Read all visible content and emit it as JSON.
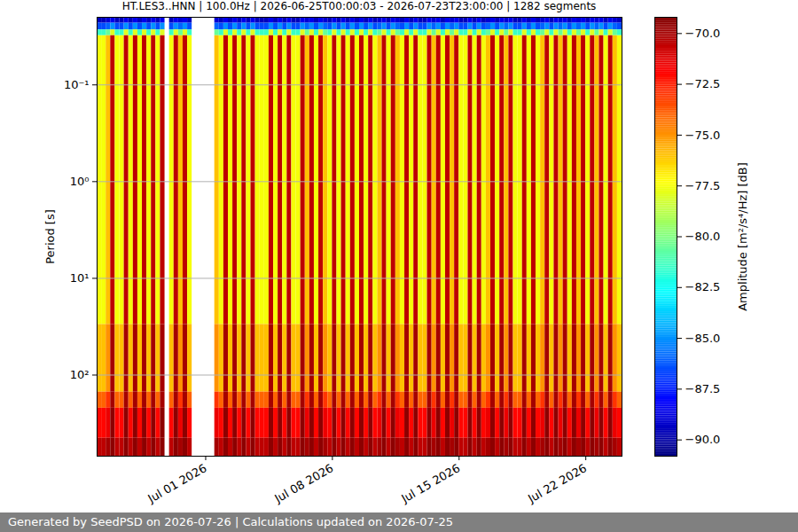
{
  "chart_data": {
    "type": "heatmap",
    "title": "HT.LES3..HNN | 100.0Hz | 2026-06-25T00:00:03 - 2026-07-23T23:00:00 | 1282 segments",
    "ylabel": "Period [s]",
    "caption": "Generated by SeedPSD on 2026-07-26 | Calculations updated on 2026-07-25",
    "log": "y",
    "grid": true,
    "xlim": [
      "2026-06-25T00:00",
      "2026-07-24T00:00"
    ],
    "xticks": [
      {
        "value": "2026-07-01T00:00",
        "label": "Jul 01 2026"
      },
      {
        "value": "2026-07-08T00:00",
        "label": "Jul 08 2026"
      },
      {
        "value": "2026-07-15T00:00",
        "label": "Jul 15 2026"
      },
      {
        "value": "2026-07-22T00:00",
        "label": "Jul 22 2026"
      }
    ],
    "ylim": [
      0.02,
      690
    ],
    "yticks": [
      {
        "value": 0.1,
        "label": "10⁻¹"
      },
      {
        "value": 1,
        "label": "10⁰"
      },
      {
        "value": 10,
        "label": "10¹"
      },
      {
        "value": 100,
        "label": "10²"
      }
    ],
    "y_bins": [
      0.02,
      0.023,
      0.027,
      0.031,
      30,
      150,
      220,
      450,
      690
    ],
    "colorbar": {
      "label": "Amplitude [m²/s⁴/Hz] [dB]",
      "range": [
        -90.8,
        -69.2
      ],
      "ticks": [
        {
          "value": -70,
          "label": "−70.0"
        },
        {
          "value": -72.5,
          "label": "−72.5"
        },
        {
          "value": -75,
          "label": "−75.0"
        },
        {
          "value": -77.5,
          "label": "−77.5"
        },
        {
          "value": -80,
          "label": "−80.0"
        },
        {
          "value": -82.5,
          "label": "−82.5"
        },
        {
          "value": -85,
          "label": "−85.0"
        },
        {
          "value": -87.5,
          "label": "−87.5"
        },
        {
          "value": -90,
          "label": "−90.0"
        }
      ]
    },
    "x": [
      "2026-06-25T00:00",
      "2026-06-25T06:00",
      "2026-06-25T12:00",
      "2026-06-25T18:00",
      "2026-06-26T00:00",
      "2026-06-26T06:00",
      "2026-06-26T12:00",
      "2026-06-26T18:00",
      "2026-06-27T00:00",
      "2026-06-27T06:00",
      "2026-06-27T12:00",
      "2026-06-27T18:00",
      "2026-06-28T00:00",
      "2026-06-28T06:00",
      "2026-06-28T12:00",
      "2026-06-28T18:00",
      "2026-06-29T00:00",
      "2026-06-29T06:00",
      "2026-06-29T12:00",
      "2026-06-29T18:00",
      "2026-06-30T00:00",
      "2026-06-30T06:00",
      "2026-06-30T12:00",
      "2026-06-30T18:00",
      "2026-07-01T00:00",
      "2026-07-01T06:00",
      "2026-07-01T12:00",
      "2026-07-01T18:00",
      "2026-07-02T00:00",
      "2026-07-02T06:00",
      "2026-07-02T12:00",
      "2026-07-02T18:00",
      "2026-07-03T00:00",
      "2026-07-03T06:00",
      "2026-07-03T12:00",
      "2026-07-03T18:00",
      "2026-07-04T00:00",
      "2026-07-04T06:00",
      "2026-07-04T12:00",
      "2026-07-04T18:00",
      "2026-07-05T00:00",
      "2026-07-05T06:00",
      "2026-07-05T12:00",
      "2026-07-05T18:00",
      "2026-07-06T00:00",
      "2026-07-06T06:00",
      "2026-07-06T12:00",
      "2026-07-06T18:00",
      "2026-07-07T00:00",
      "2026-07-07T06:00",
      "2026-07-07T12:00",
      "2026-07-07T18:00",
      "2026-07-08T00:00",
      "2026-07-08T06:00",
      "2026-07-08T12:00",
      "2026-07-08T18:00",
      "2026-07-09T00:00",
      "2026-07-09T06:00",
      "2026-07-09T12:00",
      "2026-07-09T18:00",
      "2026-07-10T00:00",
      "2026-07-10T06:00",
      "2026-07-10T12:00",
      "2026-07-10T18:00",
      "2026-07-11T00:00",
      "2026-07-11T06:00",
      "2026-07-11T12:00",
      "2026-07-11T18:00",
      "2026-07-12T00:00",
      "2026-07-12T06:00",
      "2026-07-12T12:00",
      "2026-07-12T18:00",
      "2026-07-13T00:00",
      "2026-07-13T06:00",
      "2026-07-13T12:00",
      "2026-07-13T18:00",
      "2026-07-14T00:00",
      "2026-07-14T06:00",
      "2026-07-14T12:00",
      "2026-07-14T18:00",
      "2026-07-15T00:00",
      "2026-07-15T06:00",
      "2026-07-15T12:00",
      "2026-07-15T18:00",
      "2026-07-16T00:00",
      "2026-07-16T06:00",
      "2026-07-16T12:00",
      "2026-07-16T18:00",
      "2026-07-17T00:00",
      "2026-07-17T06:00",
      "2026-07-17T12:00",
      "2026-07-17T18:00",
      "2026-07-18T00:00",
      "2026-07-18T06:00",
      "2026-07-18T12:00",
      "2026-07-18T18:00",
      "2026-07-19T00:00",
      "2026-07-19T06:00",
      "2026-07-19T12:00",
      "2026-07-19T18:00",
      "2026-07-20T00:00",
      "2026-07-20T06:00",
      "2026-07-20T12:00",
      "2026-07-20T18:00",
      "2026-07-21T00:00",
      "2026-07-21T06:00",
      "2026-07-21T12:00",
      "2026-07-21T18:00",
      "2026-07-22T00:00",
      "2026-07-22T06:00",
      "2026-07-22T12:00",
      "2026-07-22T18:00",
      "2026-07-23T00:00",
      "2026-07-23T06:00",
      "2026-07-23T12:00",
      "2026-07-23T18:00"
    ],
    "values": [
      [
        -89.5,
        -86.5,
        -81.5,
        -77.5,
        -76,
        -74,
        -72,
        -70.5
      ],
      [
        -89.5,
        -86.5,
        -81.5,
        -77.5,
        -76,
        -74,
        -72,
        -70.5
      ],
      [
        -89,
        -86,
        -80.5,
        -76,
        -75,
        -73,
        -71.5,
        -70
      ],
      [
        -88.5,
        -85,
        -78,
        -70.5,
        -70,
        -70,
        -69.5,
        -69.5
      ],
      [
        -89.5,
        -86.5,
        -81.5,
        -77.5,
        -76,
        -74,
        -72,
        -70.5
      ],
      [
        -89.5,
        -86.5,
        -81.5,
        -77.5,
        -76,
        -74,
        -72,
        -70.5
      ],
      [
        -88.5,
        -85,
        -78,
        -70.5,
        -70,
        -70,
        -69.5,
        -69.5
      ],
      [
        -89.5,
        -86.5,
        -81.5,
        -77.5,
        -76,
        -74,
        -72,
        -70.5
      ],
      [
        -88.5,
        -85,
        -78,
        -70.5,
        -70,
        -70,
        -69.5,
        -69.5
      ],
      [
        -89.5,
        -86.5,
        -81.5,
        -77.5,
        -76,
        -74,
        -72,
        -70.5
      ],
      [
        -88.5,
        -85,
        -78,
        -70.5,
        -70,
        -70,
        -69.5,
        -69.5
      ],
      [
        -89.5,
        -86.5,
        -81.5,
        -77.5,
        -76,
        -74,
        -72,
        -70.5
      ],
      [
        -88.5,
        -85,
        -78,
        -70.5,
        -70,
        -70,
        -69.5,
        -69.5
      ],
      [
        -89.5,
        -86.5,
        -81.5,
        -77.5,
        -76,
        -74,
        -72,
        -70.5
      ],
      [
        -88.5,
        -85,
        -78,
        -70.5,
        -70,
        -70,
        -69.5,
        -69.5
      ],
      null,
      [
        -89.5,
        -86.5,
        -81.5,
        -77.5,
        -76,
        -74,
        -72,
        -70.5
      ],
      [
        -88.5,
        -85,
        -78,
        -70.5,
        -70,
        -70,
        -69.5,
        -69.5
      ],
      [
        -89,
        -86,
        -80.5,
        -76,
        -75,
        -73,
        -71.5,
        -70
      ],
      [
        -88.5,
        -85,
        -78,
        -70.5,
        -70,
        -70,
        -69.5,
        -69.5
      ],
      [
        -89.5,
        -86.5,
        -81.5,
        -77.5,
        -76,
        -74,
        -72,
        -70.5
      ],
      null,
      null,
      null,
      null,
      null,
      [
        -89,
        -86,
        -80.5,
        -76,
        -75,
        -73,
        -71.5,
        -70
      ],
      [
        -89.5,
        -86.5,
        -81.5,
        -77.5,
        -76,
        -74,
        -72,
        -70.5
      ],
      [
        -88.5,
        -85,
        -78,
        -70.5,
        -70,
        -70,
        -69.5,
        -69.5
      ],
      [
        -89.5,
        -86.5,
        -81.5,
        -77.5,
        -76,
        -74,
        -72,
        -70.5
      ],
      [
        -88.5,
        -85,
        -78,
        -70.5,
        -70,
        -70,
        -69.5,
        -69.5
      ],
      [
        -89.5,
        -86.5,
        -81.5,
        -77.5,
        -76,
        -74,
        -72,
        -70.5
      ],
      [
        -88.5,
        -85,
        -78,
        -70.5,
        -70,
        -70,
        -69.5,
        -69.5
      ],
      [
        -89.5,
        -86.5,
        -81.5,
        -77.5,
        -76,
        -74,
        -72,
        -70.5
      ],
      [
        -88.5,
        -85,
        -78,
        -70.5,
        -70,
        -70,
        -69.5,
        -69.5
      ],
      [
        -89.5,
        -86.5,
        -81.5,
        -77.5,
        -76,
        -74,
        -72,
        -70.5
      ],
      [
        -89.5,
        -86.5,
        -81.5,
        -77.5,
        -76,
        -74,
        -72,
        -70.5
      ],
      [
        -89.5,
        -86.5,
        -81.5,
        -77.5,
        -76,
        -74,
        -72,
        -70.5
      ],
      [
        -88.5,
        -85,
        -78,
        -70.5,
        -70,
        -70,
        -69.5,
        -69.5
      ],
      [
        -89.5,
        -86.5,
        -81.5,
        -77.5,
        -76,
        -74,
        -72,
        -70.5
      ],
      [
        -88.5,
        -85,
        -78,
        -70.5,
        -70,
        -70,
        -69.5,
        -69.5
      ],
      [
        -89.5,
        -86.5,
        -81.5,
        -77.5,
        -76,
        -74,
        -72,
        -70.5
      ],
      [
        -88.5,
        -85,
        -78,
        -70.5,
        -70,
        -70,
        -69.5,
        -69.5
      ],
      [
        -89.5,
        -86.5,
        -81.5,
        -77.5,
        -76,
        -74,
        -72,
        -70.5
      ],
      [
        -89.5,
        -86.5,
        -81.5,
        -77.5,
        -76,
        -74,
        -72,
        -70.5
      ],
      [
        -88.5,
        -85,
        -78,
        -70.5,
        -70,
        -70,
        -69.5,
        -69.5
      ],
      [
        -89,
        -86,
        -80.5,
        -76,
        -75,
        -73,
        -71.5,
        -70
      ],
      [
        -88.5,
        -85,
        -78,
        -70.5,
        -70,
        -70,
        -69.5,
        -69.5
      ],
      [
        -89.5,
        -86.5,
        -81.5,
        -77.5,
        -76,
        -74,
        -72,
        -70.5
      ],
      [
        -88.5,
        -85,
        -78,
        -70.5,
        -70,
        -70,
        -69.5,
        -69.5
      ],
      [
        -89,
        -86,
        -80.5,
        -76,
        -75,
        -73,
        -71.5,
        -70
      ],
      [
        -89.5,
        -86.5,
        -81.5,
        -77.5,
        -76,
        -74,
        -72,
        -70.5
      ],
      [
        -88.5,
        -85,
        -78,
        -70.5,
        -70,
        -70,
        -69.5,
        -69.5
      ],
      [
        -89.5,
        -86.5,
        -81.5,
        -77.5,
        -76,
        -74,
        -72,
        -70.5
      ],
      [
        -88.5,
        -85,
        -78,
        -70.5,
        -70,
        -70,
        -69.5,
        -69.5
      ],
      [
        -89.5,
        -86.5,
        -81.5,
        -77.5,
        -76,
        -74,
        -72,
        -70.5
      ],
      [
        -88.5,
        -85,
        -78,
        -70.5,
        -70,
        -70,
        -69.5,
        -69.5
      ],
      [
        -89.5,
        -86.5,
        -81.5,
        -77.5,
        -76,
        -74,
        -72,
        -70.5
      ],
      [
        -88.5,
        -85,
        -78,
        -70.5,
        -70,
        -70,
        -69.5,
        -69.5
      ],
      [
        -89.5,
        -86.5,
        -81.5,
        -77.5,
        -76,
        -74,
        -72,
        -70.5
      ],
      [
        -88.5,
        -85,
        -78,
        -70.5,
        -70,
        -70,
        -69.5,
        -69.5
      ],
      [
        -89.5,
        -86.5,
        -81.5,
        -77.5,
        -76,
        -74,
        -72,
        -70.5
      ],
      [
        -89,
        -86,
        -80.5,
        -76,
        -75,
        -73,
        -71.5,
        -70
      ],
      [
        -88.5,
        -85,
        -78,
        -70.5,
        -70,
        -70,
        -69.5,
        -69.5
      ],
      [
        -89.5,
        -86.5,
        -81.5,
        -77.5,
        -76,
        -74,
        -72,
        -70.5
      ],
      [
        -88.5,
        -85,
        -78,
        -70.5,
        -70,
        -70,
        -69.5,
        -69.5
      ],
      [
        -89,
        -86,
        -80.5,
        -76,
        -75,
        -73,
        -71.5,
        -70
      ],
      [
        -89.5,
        -86.5,
        -81.5,
        -77.5,
        -76,
        -74,
        -72,
        -70.5
      ],
      [
        -88.5,
        -85,
        -78,
        -70.5,
        -70,
        -70,
        -69.5,
        -69.5
      ],
      [
        -89.5,
        -86.5,
        -81.5,
        -77.5,
        -76,
        -74,
        -72,
        -70.5
      ],
      [
        -88.5,
        -85,
        -78,
        -70.5,
        -70,
        -70,
        -69.5,
        -69.5
      ],
      [
        -89.5,
        -86.5,
        -81.5,
        -77.5,
        -76,
        -74,
        -72,
        -70.5
      ],
      [
        -89.5,
        -86.5,
        -81.5,
        -77.5,
        -76,
        -74,
        -72,
        -70.5
      ],
      [
        -88.5,
        -85,
        -78,
        -70.5,
        -70,
        -70,
        -69.5,
        -69.5
      ],
      [
        -89,
        -86,
        -80.5,
        -76,
        -75,
        -73,
        -71.5,
        -70
      ],
      [
        -88.5,
        -85,
        -78,
        -70.5,
        -70,
        -70,
        -69.5,
        -69.5
      ],
      [
        -89.5,
        -86.5,
        -81.5,
        -77.5,
        -76,
        -74,
        -72,
        -70.5
      ],
      [
        -88.5,
        -85,
        -78,
        -70.5,
        -70,
        -70,
        -69.5,
        -69.5
      ],
      [
        -89,
        -86,
        -80.5,
        -76,
        -75,
        -73,
        -71.5,
        -70
      ],
      [
        -88.5,
        -85,
        -78,
        -70.5,
        -70,
        -70,
        -69.5,
        -69.5
      ],
      [
        -89.5,
        -86.5,
        -81.5,
        -77.5,
        -76,
        -74,
        -72,
        -70.5
      ],
      [
        -89.5,
        -86.5,
        -81.5,
        -77.5,
        -76,
        -74,
        -72,
        -70.5
      ],
      [
        -88.5,
        -85,
        -78,
        -70.5,
        -70,
        -70,
        -69.5,
        -69.5
      ],
      [
        -89.5,
        -86.5,
        -81.5,
        -77.5,
        -76,
        -74,
        -72,
        -70.5
      ],
      [
        -88.5,
        -85,
        -78,
        -70.5,
        -70,
        -70,
        -69.5,
        -69.5
      ],
      [
        -89.5,
        -86.5,
        -81.5,
        -77.5,
        -76,
        -74,
        -72,
        -70.5
      ],
      [
        -89,
        -86,
        -80.5,
        -76,
        -75,
        -73,
        -71.5,
        -70
      ],
      [
        -88.5,
        -85,
        -78,
        -70.5,
        -70,
        -70,
        -69.5,
        -69.5
      ],
      [
        -89.5,
        -86.5,
        -81.5,
        -77.5,
        -76,
        -74,
        -72,
        -70.5
      ],
      [
        -88.5,
        -85,
        -78,
        -70.5,
        -70,
        -70,
        -69.5,
        -69.5
      ],
      [
        -89,
        -86,
        -80.5,
        -76,
        -75,
        -73,
        -71.5,
        -70
      ],
      [
        -88.5,
        -85,
        -78,
        -70.5,
        -70,
        -70,
        -69.5,
        -69.5
      ],
      [
        -89.5,
        -86.5,
        -81.5,
        -77.5,
        -76,
        -74,
        -72,
        -70.5
      ],
      [
        -89.5,
        -86.5,
        -81.5,
        -77.5,
        -76,
        -74,
        -72,
        -70.5
      ],
      [
        -88.5,
        -85,
        -78,
        -70.5,
        -70,
        -70,
        -69.5,
        -69.5
      ],
      [
        -89.5,
        -86.5,
        -81.5,
        -77.5,
        -76,
        -74,
        -72,
        -70.5
      ],
      [
        -88.5,
        -85,
        -78,
        -70.5,
        -70,
        -70,
        -69.5,
        -69.5
      ],
      [
        -89.5,
        -86.5,
        -81.5,
        -77.5,
        -76,
        -74,
        -72,
        -70.5
      ],
      [
        -89,
        -86,
        -80.5,
        -76,
        -75,
        -73,
        -71.5,
        -70
      ],
      [
        -88.5,
        -85,
        -78,
        -70.5,
        -70,
        -70,
        -69.5,
        -69.5
      ],
      [
        -89.5,
        -86.5,
        -81.5,
        -77.5,
        -76,
        -74,
        -72,
        -70.5
      ],
      [
        -88.5,
        -85,
        -78,
        -70.5,
        -70,
        -70,
        -69.5,
        -69.5
      ],
      [
        -89,
        -86,
        -80.5,
        -76,
        -75,
        -73,
        -71.5,
        -70
      ],
      [
        -88.5,
        -85,
        -78,
        -70.5,
        -70,
        -70,
        -69.5,
        -69.5
      ],
      [
        -89.5,
        -86.5,
        -81.5,
        -77.5,
        -76,
        -74,
        -72,
        -70.5
      ],
      [
        -88.5,
        -85,
        -78,
        -70.5,
        -70,
        -70,
        -69.5,
        -69.5
      ],
      [
        -89,
        -86,
        -80.5,
        -76,
        -75,
        -73,
        -71.5,
        -70
      ],
      [
        -88.5,
        -85,
        -78,
        -70.5,
        -70,
        -70,
        -69.5,
        -69.5
      ],
      [
        -89.5,
        -86.5,
        -81.5,
        -77.5,
        -76,
        -74,
        -72,
        -70.5
      ],
      [
        -88.5,
        -85,
        -78,
        -70.5,
        -70,
        -70,
        -69.5,
        -69.5
      ],
      [
        -89,
        -86,
        -80.5,
        -76,
        -75,
        -73,
        -71.5,
        -70
      ],
      [
        -88.5,
        -85,
        -78,
        -70.5,
        -70,
        -70,
        -69.5,
        -69.5
      ],
      [
        -89.5,
        -86.5,
        -81.5,
        -77.5,
        -76,
        -74,
        -72,
        -70.5
      ],
      [
        -88.5,
        -85,
        -78,
        -70.5,
        -70,
        -70,
        -69.5,
        -69.5
      ],
      [
        -89,
        -86,
        -80.5,
        -76,
        -75,
        -73,
        -71.5,
        -70
      ],
      [
        -89.5,
        -86.5,
        -81.5,
        -77.5,
        -76,
        -74,
        -72,
        -70.5
      ]
    ]
  }
}
